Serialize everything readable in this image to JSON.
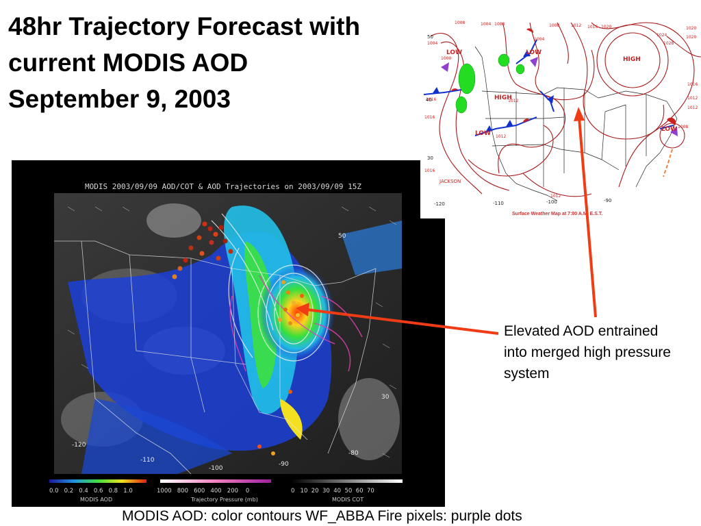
{
  "slide": {
    "title_lines": [
      "48hr Trajectory Forecast with",
      "current MODIS AOD",
      "September 9, 2003"
    ],
    "annotation_lines": [
      "Elevated AOD entrained",
      "into merged high pressure",
      "system"
    ],
    "caption": "MODIS AOD: color contours WF_ABBA Fire pixels: purple dots"
  },
  "modis_panel": {
    "title": "MODIS 2003/09/09 AOD/COT & AOD Trajectories on 2003/09/09 15Z",
    "lat_labels": [
      "50",
      "30"
    ],
    "lon_labels": [
      "-120",
      "-110",
      "-100",
      "-90",
      "-80"
    ],
    "colorbars": [
      {
        "label": "MODIS AOD",
        "ticks": [
          "0.0",
          "0.2",
          "0.4",
          "0.6",
          "0.8",
          "1.0"
        ]
      },
      {
        "label": "Trajectory Pressure (mb)",
        "ticks": [
          "1000",
          "800",
          "600",
          "400",
          "200",
          "0"
        ]
      },
      {
        "label": "MODIS COT",
        "ticks": [
          "0",
          "10",
          "20",
          "30",
          "40",
          "50",
          "60",
          "70"
        ]
      }
    ]
  },
  "weather_map": {
    "caption": "Surface Weather Map at 7:00 A.M. E.S.T.",
    "pressure_labels": [
      "1008",
      "1004",
      "1008",
      "1004",
      "1000",
      "1004",
      "1008",
      "1012",
      "1016",
      "1020",
      "1024",
      "1020",
      "1028",
      "1020",
      "1016",
      "1012",
      "1012",
      "1008",
      "1012",
      "1016",
      "1012",
      "1016",
      "1016",
      "1012"
    ],
    "systems": [
      "LOW",
      "LOW",
      "HIGH",
      "HIGH",
      "LOW",
      "LOW"
    ],
    "city": "JACKSON",
    "lat_labels": [
      "50",
      "40",
      "30"
    ],
    "lon_labels": [
      "-120",
      "-110",
      "-100",
      "-90"
    ]
  },
  "colors": {
    "arrow": "#f03c14",
    "low": "#cc2020",
    "isobar": "#a81818"
  }
}
